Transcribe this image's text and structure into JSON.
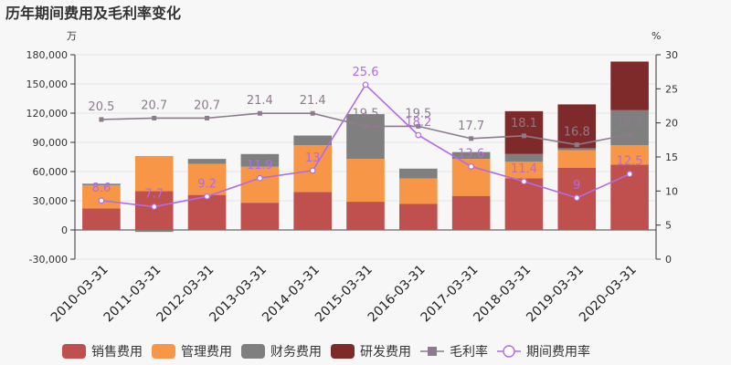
{
  "chart_data": {
    "type": "bar",
    "title": "历年期间费用及毛利率变化",
    "left_unit": "万",
    "right_unit": "%",
    "categories": [
      "2010-03-31",
      "2011-03-31",
      "2012-03-31",
      "2013-03-31",
      "2014-03-31",
      "2015-03-31",
      "2016-03-31",
      "2017-03-31",
      "2018-03-31",
      "2019-03-31",
      "2020-03-31"
    ],
    "ylim_left": [
      -30000,
      180000
    ],
    "yticks_left": [
      "-30,000",
      "0",
      "30,000",
      "60,000",
      "90,000",
      "120,000",
      "150,000",
      "180,000"
    ],
    "ylim_right": [
      0,
      30
    ],
    "yticks_right": [
      "0",
      "5",
      "10",
      "15",
      "20",
      "25",
      "30"
    ],
    "bar_series": [
      {
        "name": "销售费用",
        "color": "#c0504d",
        "values": [
          22000,
          40000,
          36000,
          28000,
          39000,
          29000,
          27000,
          35000,
          53000,
          64000,
          67000
        ]
      },
      {
        "name": "管理费用",
        "color": "#f79646",
        "values": [
          24000,
          36000,
          32000,
          37000,
          48000,
          44000,
          26000,
          38000,
          17000,
          18000,
          20000
        ]
      },
      {
        "name": "财务费用",
        "color": "#7f7f7f",
        "values": [
          1500,
          -2000,
          5000,
          13000,
          10000,
          46000,
          10000,
          7000,
          8000,
          2000,
          36000
        ]
      },
      {
        "name": "研发费用",
        "color": "#7f2a2a",
        "values": [
          0,
          0,
          0,
          0,
          0,
          0,
          0,
          0,
          44000,
          45000,
          50000
        ]
      }
    ],
    "line_series": [
      {
        "name": "毛利率",
        "color": "#8c7b8c",
        "values": [
          20.5,
          20.7,
          20.7,
          21.4,
          21.4,
          19.5,
          19.5,
          17.7,
          18.1,
          16.8,
          18.3
        ],
        "labels": [
          "20.5",
          "20.7",
          "20.7",
          "21.4",
          "21.4",
          "19.5",
          "19.5",
          "17.7",
          "18.1",
          "16.8",
          "18.3"
        ]
      },
      {
        "name": "期间费用率",
        "color": "#b26be6",
        "values": [
          8.6,
          7.7,
          9.2,
          11.9,
          13,
          25.6,
          18.2,
          13.6,
          11.4,
          9,
          12.5
        ],
        "labels": [
          "8.6",
          "7.7",
          "9.2",
          "11.9",
          "13",
          "25.6",
          "18.2",
          "13.6",
          "11.4",
          "9",
          "12.5"
        ]
      }
    ],
    "legend_position": "bottom"
  }
}
